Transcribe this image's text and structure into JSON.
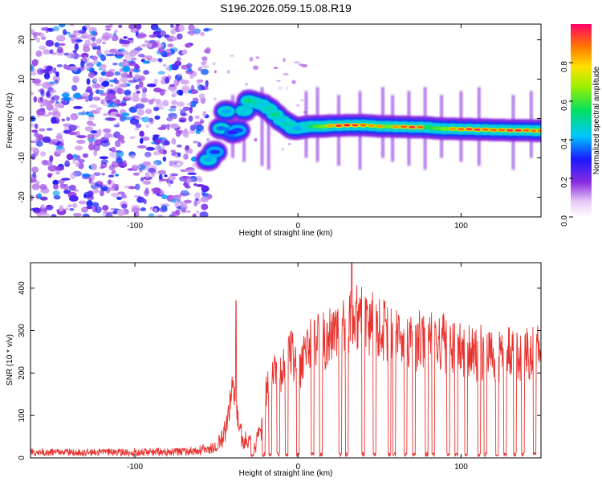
{
  "title": "S196.2026.059.15.08.R19",
  "chart_data": [
    {
      "type": "heatmap",
      "title": "S196.2026.059.15.08.R19",
      "xlabel": "Height of straight line (km)",
      "ylabel": "Frequency (Hz)",
      "xlim": [
        -164,
        149
      ],
      "ylim": [
        -25,
        24
      ],
      "xticks": [
        -100,
        0,
        100
      ],
      "xtick_labels": [
        "-100",
        "0",
        "100"
      ],
      "yticks": [
        -20,
        -10,
        0,
        10,
        20
      ],
      "ytick_labels": [
        "-20",
        "-10",
        "0",
        "10",
        "20"
      ],
      "colorbar": {
        "label": "Normalized spectral amplitude",
        "range": [
          0,
          1
        ],
        "ticks": [
          0.0,
          0.2,
          0.4,
          0.6,
          0.8
        ],
        "tick_labels": [
          "0.0",
          "0.2",
          "0.4",
          "0.6",
          "0.8"
        ],
        "colormap": "rainbow (white-violet-blue-cyan-green-yellow-red)"
      },
      "noise_region": {
        "x_range": [
          -164,
          -55
        ],
        "amplitude": [
          0.1,
          0.4
        ]
      },
      "signal_ridge": {
        "x": [
          -55,
          -51,
          -47,
          -44,
          -40,
          -37,
          -33,
          -30,
          -26,
          -22,
          -18,
          -14,
          -10,
          -6,
          -3,
          0,
          4,
          8,
          12,
          16,
          20,
          25,
          30,
          35,
          40,
          45,
          50,
          55,
          60,
          65,
          70,
          75,
          80,
          85,
          90,
          95,
          100,
          105,
          110,
          115,
          120,
          125,
          130,
          135,
          140,
          145,
          149
        ],
        "freq": [
          -10.5,
          -8.5,
          -2.5,
          1.8,
          -3.5,
          -3.0,
          2.0,
          4.5,
          4.0,
          3.5,
          2.5,
          1.0,
          -0.5,
          -1.5,
          -2.5,
          -2.5,
          -2.2,
          -2.0,
          -2.0,
          -2.0,
          -1.8,
          -1.8,
          -1.7,
          -1.7,
          -1.7,
          -1.8,
          -2.0,
          -2.0,
          -2.1,
          -2.1,
          -2.2,
          -2.2,
          -2.3,
          -2.5,
          -2.6,
          -2.6,
          -2.7,
          -2.7,
          -2.8,
          -2.8,
          -2.9,
          -2.9,
          -3.0,
          -3.0,
          -3.0,
          -3.1,
          -3.1
        ],
        "amp": [
          0.5,
          0.4,
          0.45,
          0.5,
          0.35,
          0.4,
          0.55,
          0.65,
          0.6,
          0.55,
          0.6,
          0.65,
          0.55,
          0.6,
          0.55,
          0.5,
          0.55,
          0.65,
          0.75,
          0.8,
          0.85,
          0.95,
          0.98,
          0.95,
          0.9,
          0.85,
          0.85,
          0.8,
          0.85,
          0.9,
          0.95,
          0.9,
          0.7,
          0.75,
          0.8,
          0.85,
          0.9,
          0.95,
          0.95,
          0.9,
          0.9,
          0.9,
          0.95,
          0.95,
          0.9,
          0.9,
          0.9
        ]
      },
      "vertical_streaks_x": [
        -40,
        -33,
        -22,
        -18,
        5,
        12,
        25,
        38,
        52,
        58,
        68,
        78,
        88,
        100,
        111,
        132,
        143
      ]
    },
    {
      "type": "line",
      "xlabel": "Height of straight line (km)",
      "ylabel": "SNR (10 * v/v)",
      "xlim": [
        -164,
        149
      ],
      "ylim": [
        0,
        460
      ],
      "xticks": [
        -100,
        0,
        100
      ],
      "xtick_labels": [
        "-100",
        "0",
        "100"
      ],
      "yticks": [
        0,
        100,
        200,
        300,
        400
      ],
      "ytick_labels": [
        "0",
        "100",
        "200",
        "300",
        "400"
      ],
      "series": [
        {
          "name": "SNR",
          "color": "#e8322e",
          "envelope_x": [
            -164,
            -130,
            -100,
            -70,
            -50,
            -44,
            -40,
            -37,
            -34,
            -30,
            -26,
            -22,
            -18,
            -14,
            -10,
            -6,
            -3,
            0,
            5,
            10,
            15,
            20,
            25,
            30,
            35,
            40,
            50,
            60,
            70,
            80,
            90,
            100,
            110,
            120,
            130,
            140,
            149
          ],
          "envelope_y": [
            15,
            14,
            15,
            16,
            25,
            80,
            210,
            120,
            45,
            50,
            30,
            90,
            230,
            250,
            250,
            280,
            300,
            230,
            300,
            310,
            320,
            330,
            380,
            400,
            390,
            370,
            360,
            340,
            330,
            320,
            310,
            310,
            300,
            300,
            300,
            290,
            290
          ],
          "dropout_x": [
            -28,
            -21,
            -17,
            -12,
            -7,
            0,
            9,
            14,
            26,
            30,
            40,
            47,
            56,
            59,
            66,
            71,
            79,
            83,
            92,
            97,
            103,
            111,
            115,
            122,
            127,
            133,
            138,
            145
          ],
          "peak": {
            "x": 33,
            "y": 460
          },
          "spike": {
            "x": -38,
            "y": 370
          }
        }
      ]
    }
  ]
}
